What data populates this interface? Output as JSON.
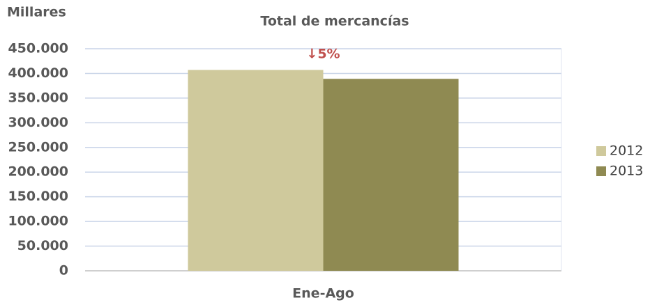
{
  "chart_data": {
    "type": "bar",
    "title": "Total de mercancías",
    "y_label": "Millares",
    "annotation": "↓5%",
    "categories": [
      "Ene-Ago"
    ],
    "series": [
      {
        "name": "2012",
        "color": "#cfc99c",
        "values": [
          407000
        ]
      },
      {
        "name": "2013",
        "color": "#8f8a52",
        "values": [
          389000
        ]
      }
    ],
    "ylim": [
      0,
      450000
    ],
    "yticks": [
      0,
      {
        "value": 50000,
        "label": "50.000"
      },
      {
        "value": 100000,
        "label": "100.000"
      },
      {
        "value": 150000,
        "label": "150.000"
      },
      {
        "value": 200000,
        "label": "200.000"
      },
      {
        "value": 250000,
        "label": "250.000"
      },
      {
        "value": 300000,
        "label": "300.000"
      },
      {
        "value": 350000,
        "label": "350.000"
      },
      {
        "value": 400000,
        "label": "400.000"
      },
      {
        "value": 450000,
        "label": "450.000"
      }
    ],
    "grid": true,
    "legend": "right"
  }
}
